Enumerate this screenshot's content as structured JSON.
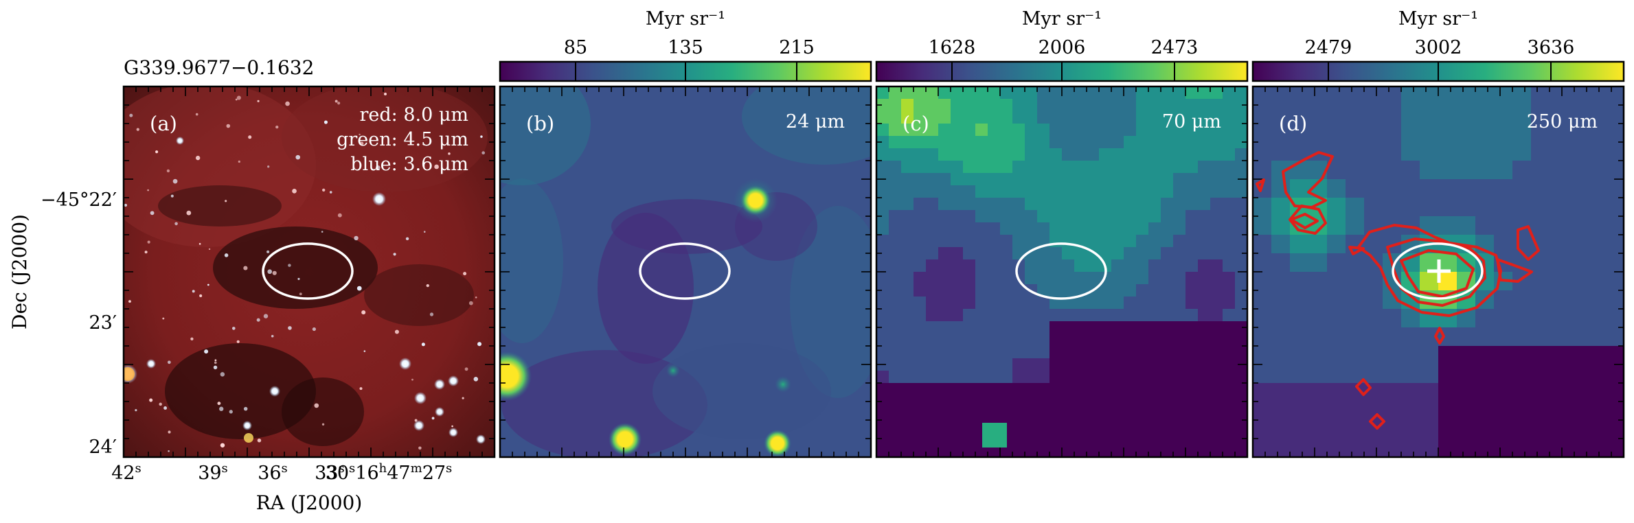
{
  "figure": {
    "source_name": "G339.9677−0.1632",
    "ylabel": "Dec (J2000)",
    "xlabel": "RA (J2000)",
    "dec_ticks": [
      "−45°22′",
      "23′",
      "24′"
    ],
    "ra_ticks": [
      "42",
      "39",
      "36",
      "33",
      "30",
      "16",
      "47",
      "27"
    ],
    "ra_tick_suffix": [
      "s",
      "s",
      "s",
      "s",
      "s",
      "h",
      "m",
      "s"
    ]
  },
  "panels": [
    {
      "id": "a",
      "label": "(a)",
      "legend_lines": [
        "red: 8.0 μm",
        "green: 4.5 μm",
        "blue: 3.6 μm"
      ],
      "colorbar": null
    },
    {
      "id": "b",
      "label": "(b)",
      "wavelength": "24 μm",
      "colorbar": {
        "unit": "Myr sr⁻¹",
        "ticks": [
          "85",
          "135",
          "215"
        ]
      }
    },
    {
      "id": "c",
      "label": "(c)",
      "wavelength": "70 μm",
      "colorbar": {
        "unit": "Myr sr⁻¹",
        "ticks": [
          "1628",
          "2006",
          "2473"
        ]
      }
    },
    {
      "id": "d",
      "label": "(d)",
      "wavelength": "250 μm",
      "colorbar": {
        "unit": "Myr sr⁻¹",
        "ticks": [
          "2479",
          "3002",
          "3636"
        ]
      }
    }
  ],
  "colors": {
    "viridis": [
      "#440154",
      "#472c7a",
      "#3b528b",
      "#2c728e",
      "#21918c",
      "#28ae80",
      "#5ec962",
      "#addc30",
      "#fde725"
    ],
    "ellipse": "#ffffff",
    "contour": "#e0201a",
    "marker": "#ffffff"
  }
}
